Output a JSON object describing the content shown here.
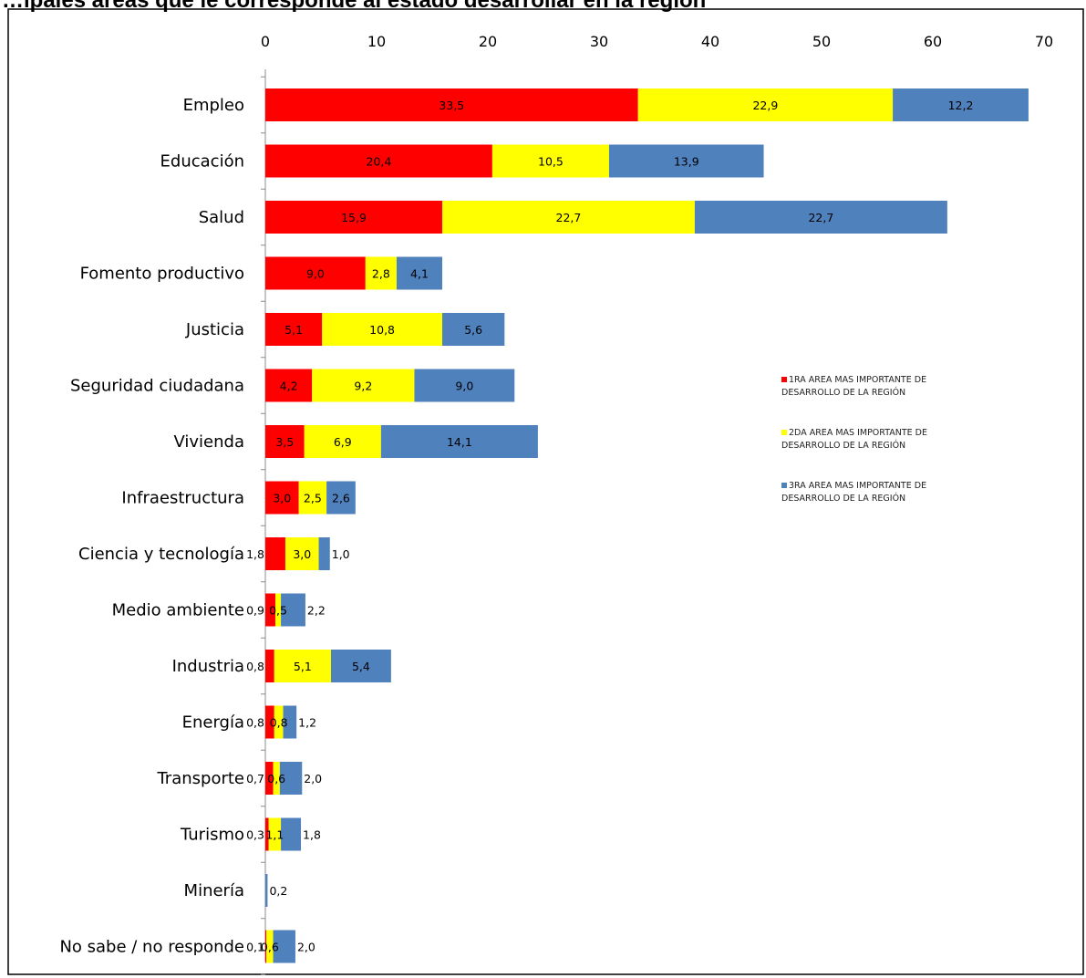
{
  "chart_data": {
    "type": "bar",
    "orientation": "horizontal",
    "stacked": true,
    "title": "…ipales áreas que le corresponde al estado desarrollar en la región",
    "xlim": [
      0,
      70
    ],
    "x_ticks": [
      "0",
      "10",
      "20",
      "30",
      "40",
      "50",
      "60",
      "70"
    ],
    "x_axis_position": "top",
    "grid": false,
    "legend_position": "right",
    "categories": [
      "Empleo",
      "Educación",
      "Salud",
      "Fomento productivo",
      "Justicia",
      "Seguridad ciudadana",
      "Vivienda",
      "Infraestructura",
      "Ciencia y tecnología",
      "Medio ambiente",
      "Industria",
      "Energía",
      "Transporte",
      "Turismo",
      "Minería",
      "No sabe / no responde"
    ],
    "series": [
      {
        "name": "1RA AREA MAS IMPORTANTE DE DESARROLLO DE LA REGIÓN",
        "color": "#ff0000",
        "values": [
          33.5,
          20.4,
          15.9,
          9.0,
          5.1,
          4.2,
          3.5,
          3.0,
          1.8,
          0.9,
          0.8,
          0.8,
          0.7,
          0.3,
          0.0,
          0.1
        ],
        "labels": [
          "33,5",
          "20,4",
          "15,9",
          "9,0",
          "5,1",
          "4,2",
          "3,5",
          "3,0",
          "1,8",
          "0,9",
          "0,8",
          "0,8",
          "0,7",
          "0,3",
          "",
          "0,1"
        ]
      },
      {
        "name": "2DA AREA MAS IMPORTANTE DE DESARROLLO DE LA REGIÓN",
        "color": "#ffff00",
        "values": [
          22.9,
          10.5,
          22.7,
          2.8,
          10.8,
          9.2,
          6.9,
          2.5,
          3.0,
          0.5,
          5.1,
          0.8,
          0.6,
          1.1,
          0.0,
          0.6
        ],
        "labels": [
          "22,9",
          "10,5",
          "22,7",
          "2,8",
          "10,8",
          "9,2",
          "6,9",
          "2,5",
          "3,0",
          "0,5",
          "5,1",
          "0,8",
          "0,6",
          "1,1",
          "",
          "0,6"
        ]
      },
      {
        "name": "3RA AREA MAS IMPORTANTE DE DESARROLLO DE LA REGIÓN",
        "color": "#4f81bd",
        "values": [
          12.2,
          13.9,
          22.7,
          4.1,
          5.6,
          9.0,
          14.1,
          2.6,
          1.0,
          2.2,
          5.4,
          1.2,
          2.0,
          1.8,
          0.2,
          2.0
        ],
        "labels": [
          "12,2",
          "13,9",
          "22,7",
          "4,1",
          "5,6",
          "9,0",
          "14,1",
          "2,6",
          "1,0",
          "2,2",
          "5,4",
          "1,2",
          "2,0",
          "1,8",
          "0,2",
          "2,0"
        ]
      }
    ]
  }
}
